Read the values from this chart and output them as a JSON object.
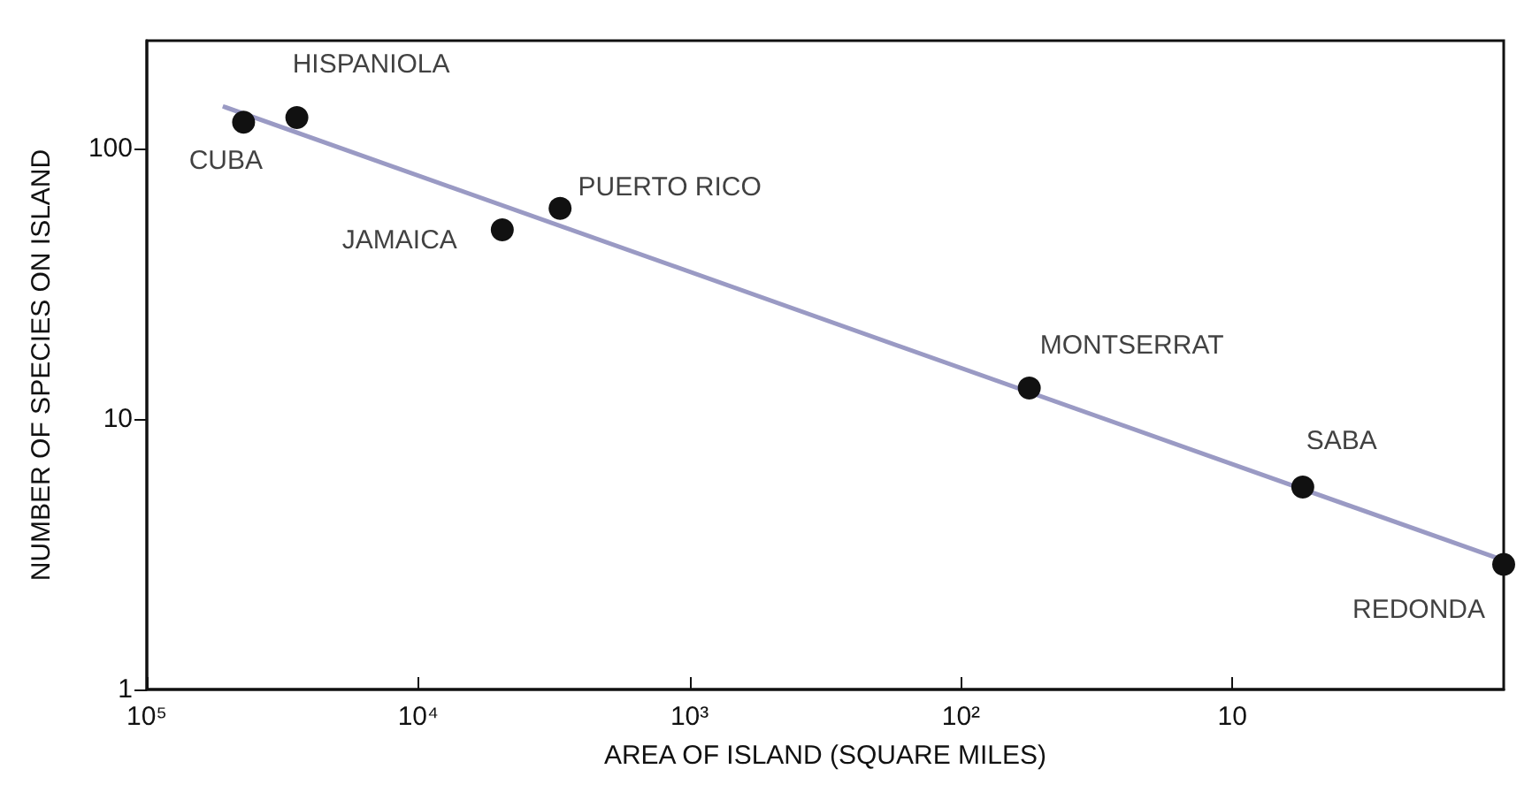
{
  "chart_data": {
    "type": "scatter",
    "xlabel": "AREA OF ISLAND (SQUARE MILES)",
    "ylabel": "NUMBER OF SPECIES ON ISLAND",
    "log": "xy",
    "xlim": [
      100000,
      1
    ],
    "ylim": [
      1,
      250
    ],
    "xticks": [
      {
        "value": 100000,
        "label": "10⁵"
      },
      {
        "value": 10000,
        "label": "10⁴"
      },
      {
        "value": 1000,
        "label": "10³"
      },
      {
        "value": 100,
        "label": "10²"
      },
      10
    ],
    "yticks": [
      1,
      10,
      100
    ],
    "grid": false,
    "series": [
      {
        "marker": "circle",
        "color": "#111111",
        "x": [
          44000,
          28000,
          4900,
          3000,
          56,
          5.5,
          1
        ],
        "values": [
          125,
          130,
          50,
          60,
          13,
          5.6,
          2.9
        ]
      },
      {
        "type": "line",
        "color": "#9a9ac4",
        "x": [
          52500,
          1
        ],
        "values": [
          143,
          3
        ]
      }
    ],
    "annotations": [
      {
        "text": "CUBA",
        "x": 44000,
        "y": 125
      },
      {
        "text": "HISPANIOLA",
        "x": 28000,
        "y": 130
      },
      {
        "text": "JAMAICA",
        "x": 4900,
        "y": 50
      },
      {
        "text": "PUERTO RICO",
        "x": 3000,
        "y": 60
      },
      {
        "text": "MONTSERRAT",
        "x": 56,
        "y": 13
      },
      {
        "text": "SABA",
        "x": 5.5,
        "y": 5.6
      },
      {
        "text": "REDONDA",
        "x": 1,
        "y": 2.9
      }
    ]
  }
}
